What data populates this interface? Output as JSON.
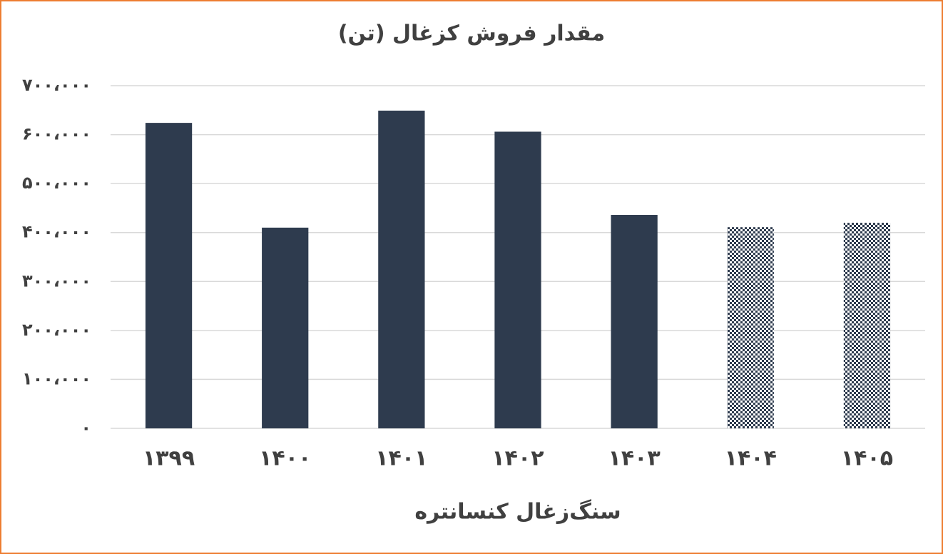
{
  "chart_data": {
    "type": "bar",
    "title": "مقدار فروش کزغال (تن)",
    "x_label": "سنگ‌زغال کنسانتره",
    "categories": [
      "۱۳۹۹",
      "۱۴۰۰",
      "۱۴۰۱",
      "۱۴۰۲",
      "۱۴۰۳",
      "۱۴۰۴",
      "۱۴۰۵"
    ],
    "values": [
      624000,
      410000,
      649000,
      606000,
      436000,
      411000,
      420000
    ],
    "color": "#2e3b4e",
    "patterned": [
      false,
      false,
      false,
      false,
      false,
      true,
      true
    ],
    "ylim": [
      0,
      700000
    ],
    "yticks": [
      {
        "value": 0,
        "label": "۰"
      },
      {
        "value": 100000,
        "label": "۱۰۰،۰۰۰"
      },
      {
        "value": 200000,
        "label": "۲۰۰،۰۰۰"
      },
      {
        "value": 300000,
        "label": "۳۰۰،۰۰۰"
      },
      {
        "value": 400000,
        "label": "۴۰۰،۰۰۰"
      },
      {
        "value": 500000,
        "label": "۵۰۰،۰۰۰"
      },
      {
        "value": 600000,
        "label": "۶۰۰،۰۰۰"
      },
      {
        "value": 700000,
        "label": "۷۰۰،۰۰۰"
      }
    ],
    "grid": true
  }
}
